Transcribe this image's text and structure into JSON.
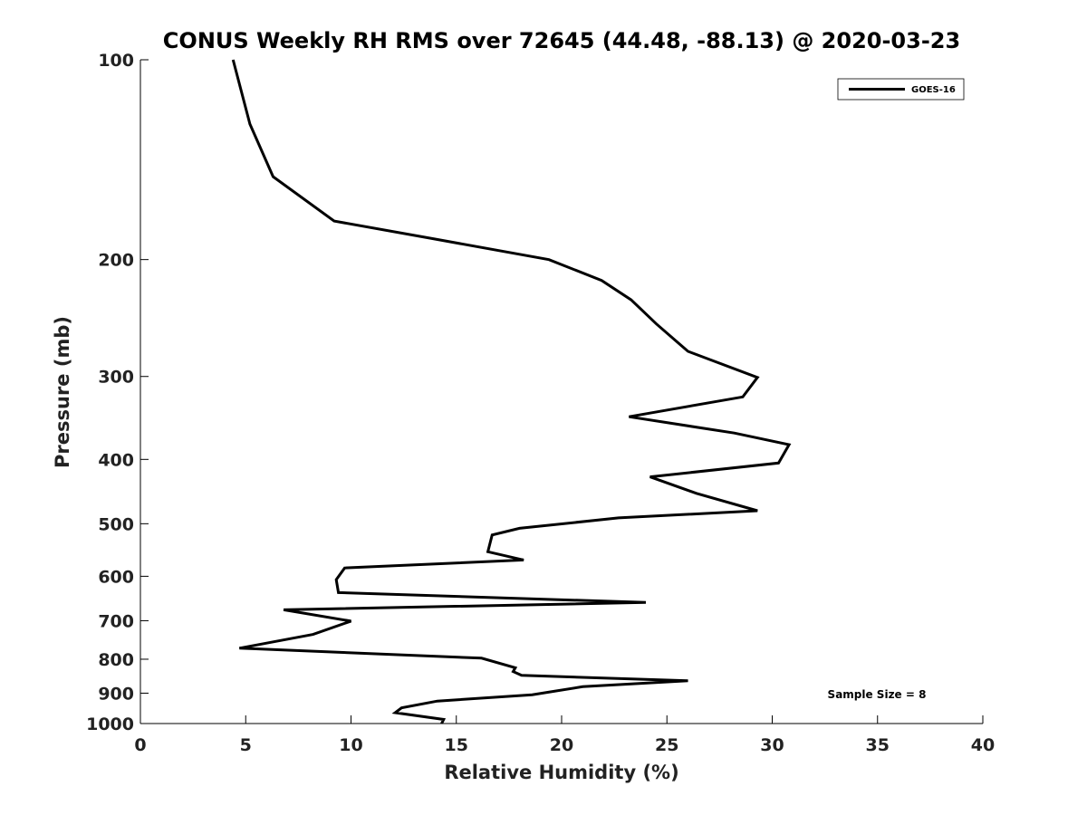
{
  "chart_data": {
    "type": "line",
    "title": "CONUS Weekly RH RMS over 72645 (44.48, -88.13) @ 2020-03-23",
    "xlabel": "Relative Humidity (%)",
    "ylabel": "Pressure (mb)",
    "xlim": [
      0,
      40
    ],
    "ylim": [
      100,
      1000
    ],
    "y_scale": "log",
    "y_reversed": true,
    "xticks": [
      0,
      5,
      10,
      15,
      20,
      25,
      30,
      35,
      40
    ],
    "yticks": [
      100,
      200,
      300,
      400,
      500,
      600,
      700,
      800,
      900,
      1000
    ],
    "grid": false,
    "legend_position": "top-right",
    "annotation": "Sample Size = 8",
    "series": [
      {
        "name": "GOES-16",
        "color": "#000000",
        "x": [
          4.4,
          5.2,
          6.3,
          9.2,
          13.9,
          19.4,
          21.9,
          23.3,
          24.5,
          26.0,
          29.3,
          28.6,
          23.2,
          28.2,
          30.8,
          30.3,
          24.2,
          26.4,
          29.3,
          22.7,
          18.0,
          16.7,
          16.5,
          18.2,
          9.7,
          9.3,
          9.4,
          24.0,
          6.8,
          10.0,
          8.2,
          4.7,
          16.2,
          17.8,
          17.7,
          18.1,
          26.0,
          21.0,
          18.6,
          14.1,
          12.4,
          12.1,
          14.4,
          14.3
        ],
        "y": [
          100,
          125,
          150,
          175,
          186,
          200,
          215,
          230,
          250,
          275,
          301,
          322,
          345,
          365,
          380,
          405,
          425,
          450,
          478,
          490,
          508,
          520,
          551,
          567,
          583,
          607,
          635,
          657,
          674,
          701,
          734,
          770,
          797,
          824,
          835,
          846,
          862,
          880,
          905,
          925,
          947,
          963,
          986,
          1000
        ]
      }
    ]
  }
}
